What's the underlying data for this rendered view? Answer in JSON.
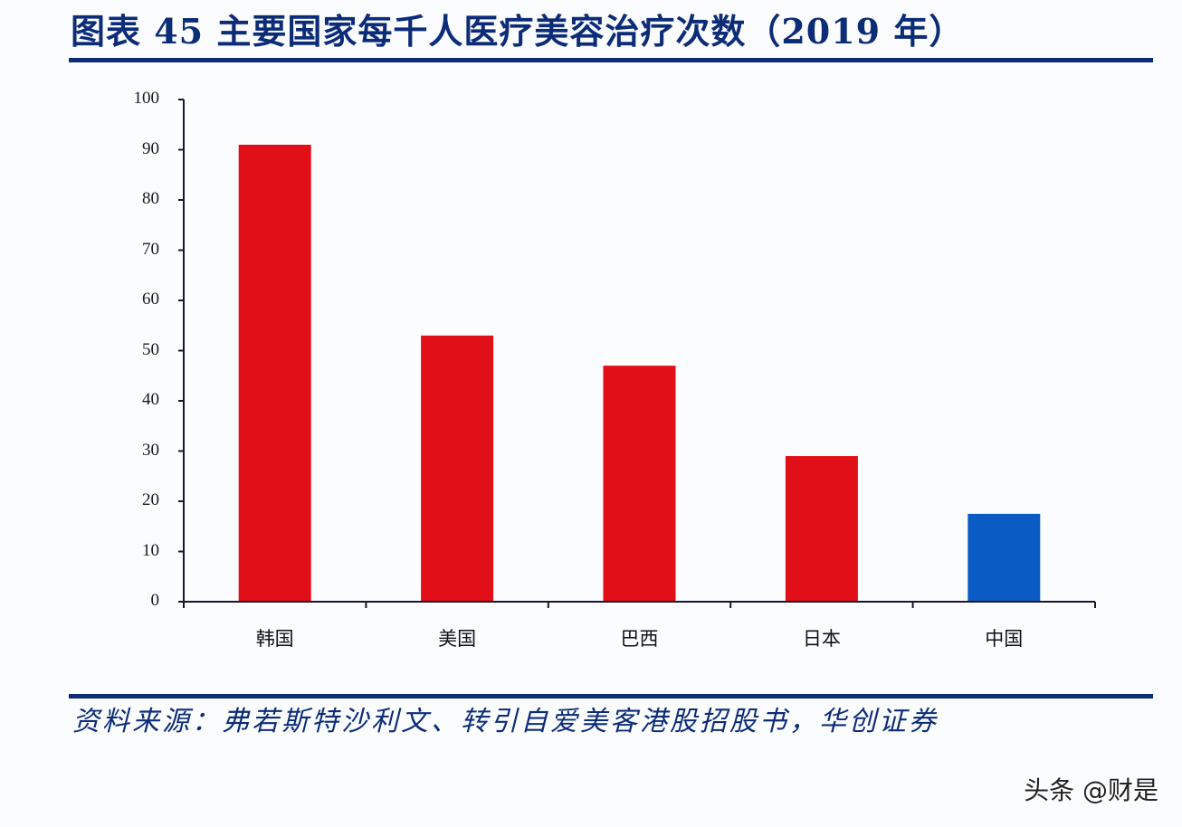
{
  "header": {
    "title": "图表 45  主要国家每千人医疗美容治疗次数（2019 年）"
  },
  "footer": {
    "source": "资料来源：弗若斯特沙利文、转引自爱美客港股招股书，华创证券",
    "watermark": "头条 @财是"
  },
  "colors": {
    "title": "#0d2c78",
    "bar_red": "#e10f17",
    "bar_blue": "#0a5cc4",
    "axis": "#1a1530"
  },
  "chart_data": {
    "type": "bar",
    "title": "主要国家每千人医疗美容治疗次数（2019 年）",
    "categories": [
      "韩国",
      "美国",
      "巴西",
      "日本",
      "中国"
    ],
    "values": [
      91,
      53,
      47,
      29,
      17.5
    ],
    "bar_colors": [
      "#e10f17",
      "#e10f17",
      "#e10f17",
      "#e10f17",
      "#0a5cc4"
    ],
    "xlabel": "",
    "ylabel": "",
    "ylim": [
      0,
      100
    ],
    "yticks": [
      0,
      10,
      20,
      30,
      40,
      50,
      60,
      70,
      80,
      90,
      100
    ],
    "grid": false,
    "legend": null
  }
}
